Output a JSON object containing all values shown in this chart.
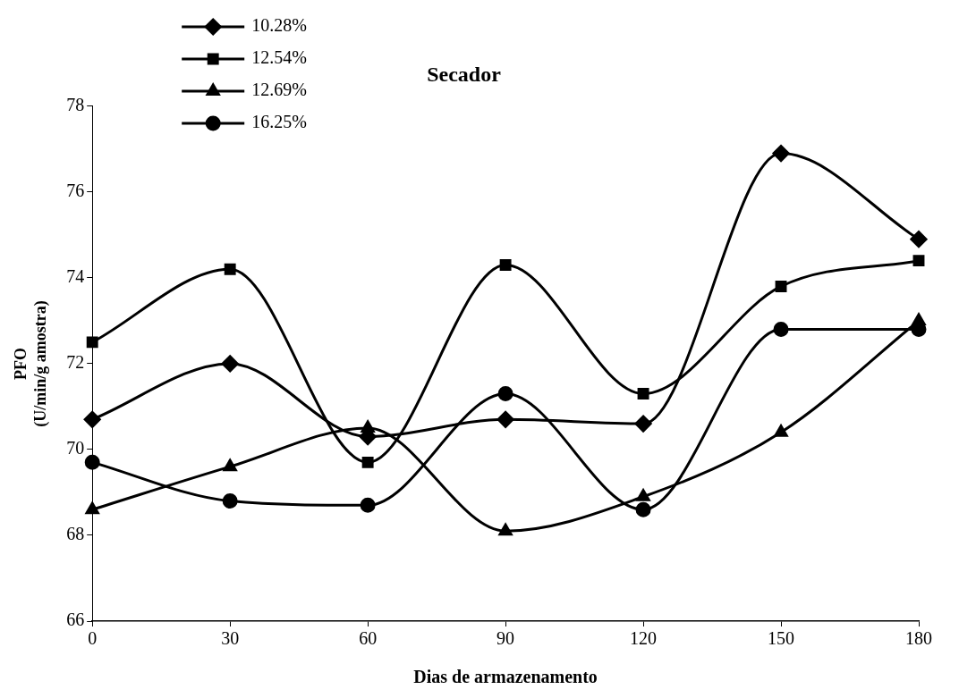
{
  "chart_data": {
    "type": "line",
    "title": "Secador",
    "xlabel": "Dias de armazenamento",
    "ylabel": "PFO\n(U/min/g amostra)",
    "x": [
      0,
      30,
      60,
      90,
      120,
      150,
      180
    ],
    "series": [
      {
        "name": "10.28%",
        "color": "#000000",
        "marker": "diamond",
        "values": [
          70.7,
          72.0,
          70.3,
          70.7,
          70.6,
          76.9,
          74.9
        ]
      },
      {
        "name": "12.54%",
        "color": "#000000",
        "marker": "square",
        "values": [
          72.5,
          74.2,
          69.7,
          74.3,
          71.3,
          73.8,
          74.4
        ]
      },
      {
        "name": "12.69%",
        "color": "#000000",
        "marker": "triangle",
        "values": [
          68.6,
          69.6,
          70.5,
          68.1,
          68.9,
          70.4,
          73.0
        ]
      },
      {
        "name": "16.25%",
        "color": "#000000",
        "marker": "circle",
        "values": [
          69.7,
          68.8,
          68.7,
          71.3,
          68.6,
          72.8,
          72.8
        ]
      }
    ],
    "xlim": [
      0,
      180
    ],
    "xticks": [
      0,
      30,
      60,
      90,
      120,
      150,
      180
    ],
    "ylim": [
      66,
      78
    ],
    "yticks": [
      66,
      68,
      70,
      72,
      74,
      76,
      78
    ],
    "grid": false,
    "legend": "top left",
    "line_style": "solid"
  }
}
